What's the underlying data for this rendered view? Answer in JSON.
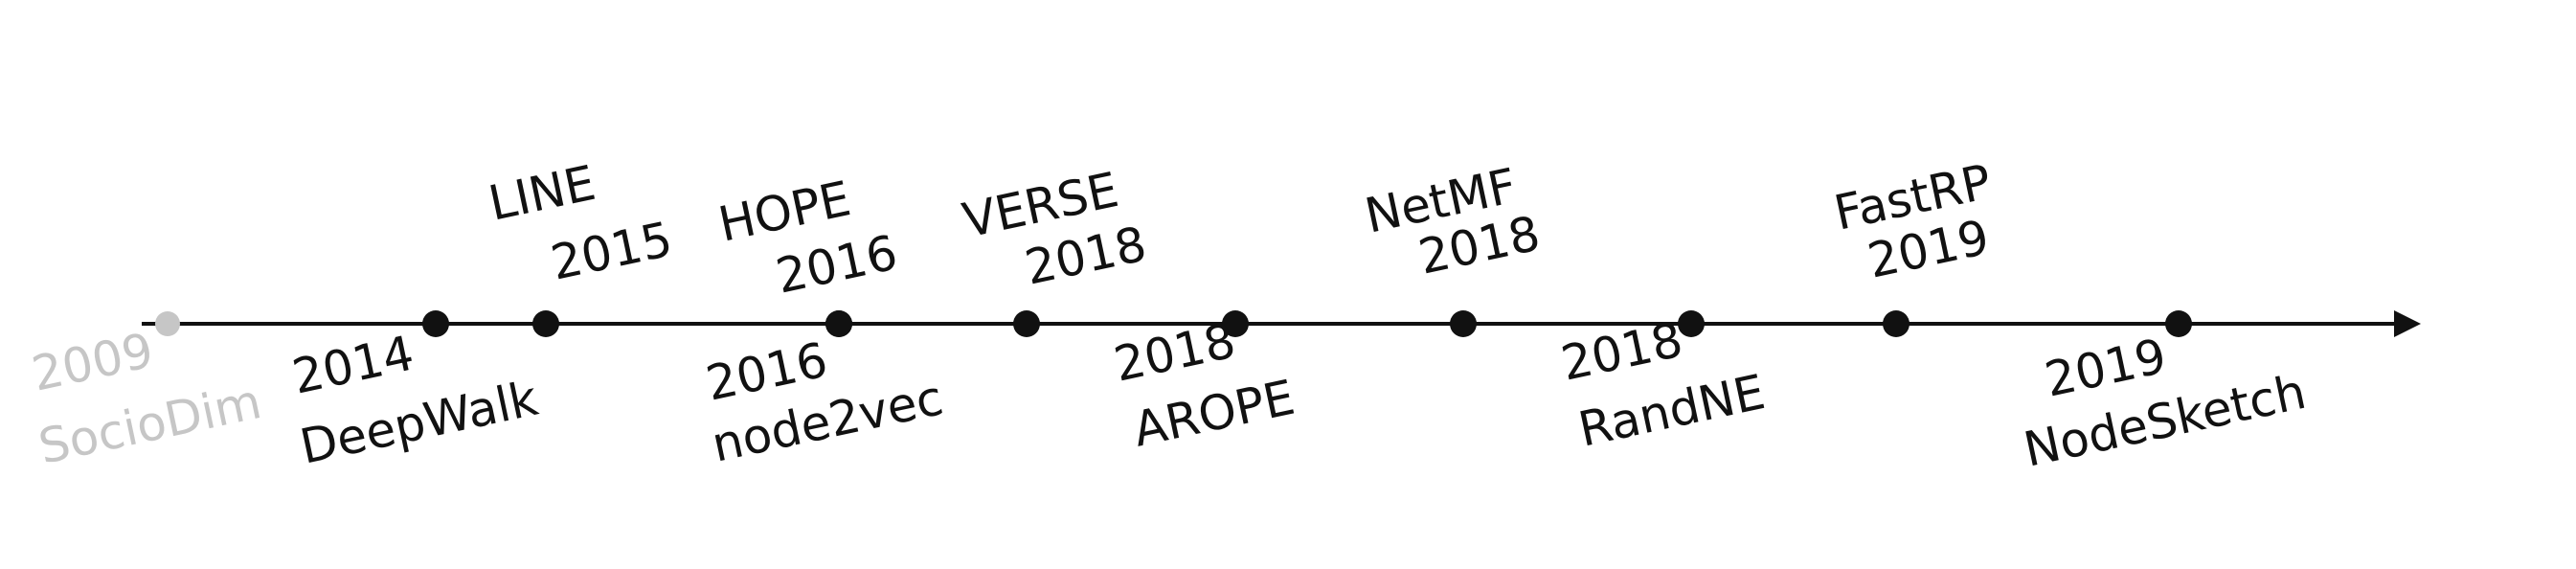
{
  "colors": {
    "line": "#111111",
    "dot": "#111111",
    "faded": "#c6c6c6",
    "text": "#111111"
  },
  "events": [
    {
      "key": "sociodim",
      "year": "2009",
      "name": "SocioDim",
      "side": "below",
      "faded": true
    },
    {
      "key": "deepwalk",
      "year": "2014",
      "name": "DeepWalk",
      "side": "below",
      "faded": false
    },
    {
      "key": "line",
      "year": "2015",
      "name": "LINE",
      "side": "above",
      "faded": false
    },
    {
      "key": "hope",
      "year": "2016",
      "name": "HOPE",
      "side": "above",
      "faded": false
    },
    {
      "key": "node2vec",
      "year": "2016",
      "name": "node2vec",
      "side": "below",
      "faded": false
    },
    {
      "key": "verse",
      "year": "2018",
      "name": "VERSE",
      "side": "above",
      "faded": false
    },
    {
      "key": "arope",
      "year": "2018",
      "name": "AROPE",
      "side": "below",
      "faded": false
    },
    {
      "key": "netmf",
      "year": "2018",
      "name": "NetMF",
      "side": "above",
      "faded": false
    },
    {
      "key": "randne",
      "year": "2018",
      "name": "RandNE",
      "side": "below",
      "faded": false
    },
    {
      "key": "fastrp",
      "year": "2019",
      "name": "FastRP",
      "side": "above",
      "faded": false
    },
    {
      "key": "nodesketch",
      "year": "2019",
      "name": "NodeSketch",
      "side": "below",
      "faded": false
    }
  ]
}
